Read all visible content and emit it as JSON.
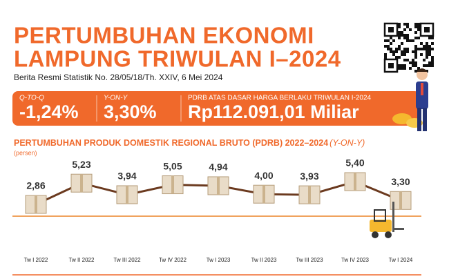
{
  "header": {
    "title_lines": [
      "PERTUMBUHAN EKONOMI",
      "LAMPUNG TRIWULAN I–2024"
    ],
    "subtitle": "Berita Resmi Statistik  No. 28/05/18/Th. XXIV, 6 Mei 2024"
  },
  "stats": [
    {
      "label": "Q-TO-Q",
      "value": "-1,24%"
    },
    {
      "label": "Y-ON-Y",
      "value": "3,30%"
    },
    {
      "label": "PDRB ATAS DASAR HARGA BERLAKU TRIWULAN I-2024",
      "value": "Rp112.091,01 Miliar"
    }
  ],
  "chart_data": {
    "type": "line",
    "title": "PERTUMBUHAN PRODUK DOMESTIK REGIONAL BRUTO (PDRB) 2022–2024",
    "title_note": "(Y-ON-Y)",
    "subtitle": "(persen)",
    "categories": [
      "Tw I 2022",
      "Tw II 2022",
      "Tw III 2022",
      "Tw IV 2022",
      "Tw I 2023",
      "Tw II 2023",
      "Tw III 2023",
      "Tw IV 2023",
      "Tw I 2024"
    ],
    "values": [
      2.86,
      5.23,
      3.94,
      5.05,
      4.94,
      4.0,
      3.93,
      5.4,
      3.3
    ],
    "value_labels": [
      "2,86",
      "5,23",
      "3,94",
      "5,05",
      "4,94",
      "4,00",
      "3,93",
      "5,40",
      "3,30"
    ],
    "color": "#6b3a1f"
  }
}
